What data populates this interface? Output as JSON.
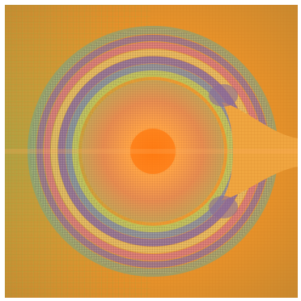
{
  "image": {
    "subject": "fractal-ring",
    "palette": {
      "background": "#e8922a",
      "background_light": "#f0a640",
      "background_green": "#a9a548",
      "core": "#ff7a10",
      "core_glow": "#ffb060",
      "inner_ring_green": "#b8c45a",
      "band_pink": "#d8707a",
      "band_violet": "#8a6a9a",
      "band_teal": "#6fa88f",
      "band_yellow": "#e8c060",
      "band_blue": "#6a8ab8"
    }
  }
}
